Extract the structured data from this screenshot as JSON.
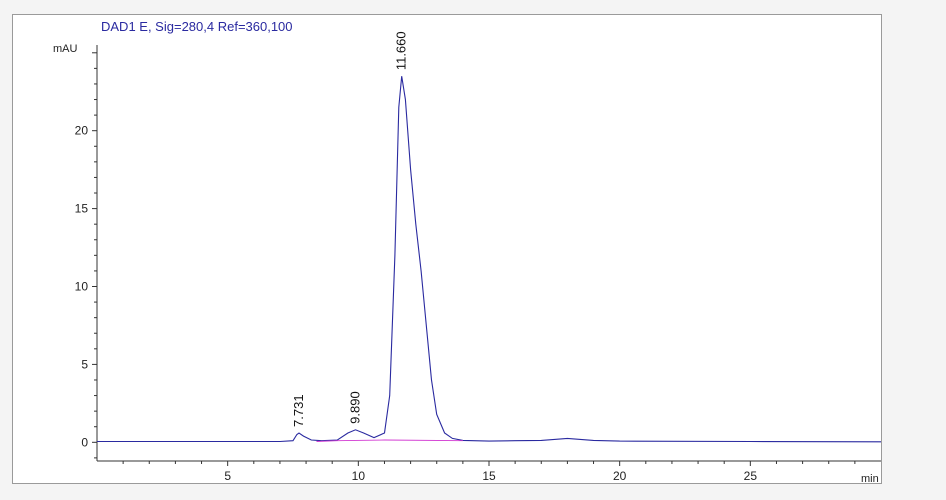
{
  "chart_data": {
    "type": "line",
    "title": "DAD1 E, Sig=280,4 Ref=360,100",
    "xlabel": "min",
    "ylabel": "mAU",
    "xlim": [
      0,
      30
    ],
    "ylim": [
      -1.2,
      25.5
    ],
    "x_ticks": [
      5,
      10,
      15,
      20,
      25
    ],
    "y_ticks": [
      0,
      5,
      10,
      15,
      20
    ],
    "grid": false,
    "peaks": [
      {
        "label": "7.731",
        "rt": 7.731,
        "height": 0.6
      },
      {
        "label": "9.890",
        "rt": 9.89,
        "height": 0.8
      },
      {
        "label": "11.660",
        "rt": 11.66,
        "height": 23.5
      }
    ],
    "series": [
      {
        "color": "#2a2aa0",
        "x": [
          0,
          7.0,
          7.5,
          7.65,
          7.731,
          7.9,
          8.2,
          8.6,
          9.2,
          9.6,
          9.89,
          10.2,
          10.6,
          11.0,
          11.2,
          11.4,
          11.55,
          11.66,
          11.8,
          12.0,
          12.2,
          12.4,
          12.6,
          12.8,
          13.0,
          13.3,
          13.6,
          14.0,
          15.0,
          16.0,
          17.0,
          18.0,
          19.0,
          20.0,
          25.0,
          30.0
        ],
        "y": [
          0.05,
          0.05,
          0.1,
          0.5,
          0.6,
          0.4,
          0.15,
          0.1,
          0.15,
          0.6,
          0.8,
          0.6,
          0.3,
          0.6,
          3.0,
          12.0,
          21.5,
          23.5,
          22.0,
          17.5,
          14.0,
          11.0,
          7.5,
          4.0,
          1.8,
          0.6,
          0.25,
          0.12,
          0.08,
          0.1,
          0.12,
          0.25,
          0.12,
          0.08,
          0.05,
          0.03
        ]
      },
      {
        "color": "#d23ad2",
        "x": [
          8.4,
          9.2,
          11.0,
          14.0
        ],
        "y": [
          0.05,
          0.1,
          0.15,
          0.1
        ]
      }
    ]
  }
}
